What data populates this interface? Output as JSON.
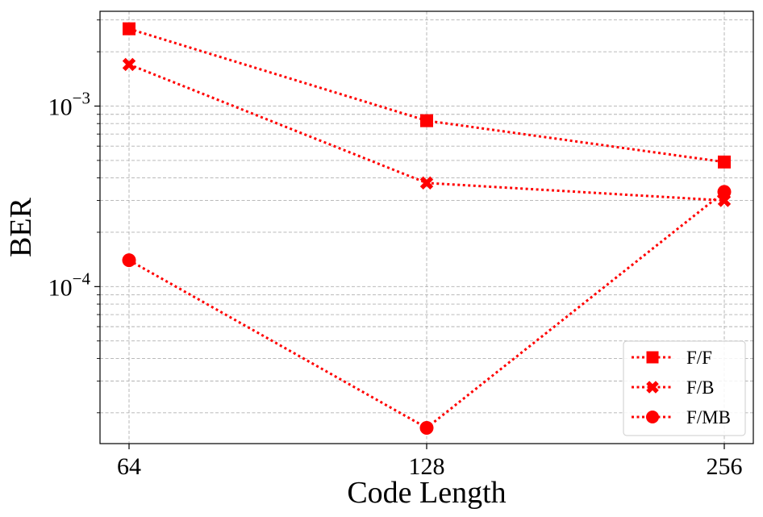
{
  "chart_data": {
    "type": "line",
    "xlabel": "Code Length",
    "ylabel": "BER",
    "categories": [
      "64",
      "128",
      "256"
    ],
    "y_scale": "log",
    "ylim": [
      1.35e-05,
      0.00335
    ],
    "y_ticks": [
      {
        "value": 0.0001,
        "base": "10",
        "exp": "−4"
      },
      {
        "value": 0.001,
        "base": "10",
        "exp": "−3"
      }
    ],
    "grid": true,
    "legend_position": "bottom-right",
    "series": [
      {
        "name": "F/F",
        "marker": "square",
        "color": "#ff0000",
        "linestyle": "dotted",
        "values": [
          0.00268,
          0.00083,
          0.00049
        ]
      },
      {
        "name": "F/B",
        "marker": "x",
        "color": "#ff0000",
        "linestyle": "dotted",
        "values": [
          0.0017,
          0.000375,
          0.0003
        ]
      },
      {
        "name": "F/MB",
        "marker": "circle",
        "color": "#ff0000",
        "linestyle": "dotted",
        "values": [
          0.00014,
          1.65e-05,
          0.000335
        ]
      }
    ]
  }
}
